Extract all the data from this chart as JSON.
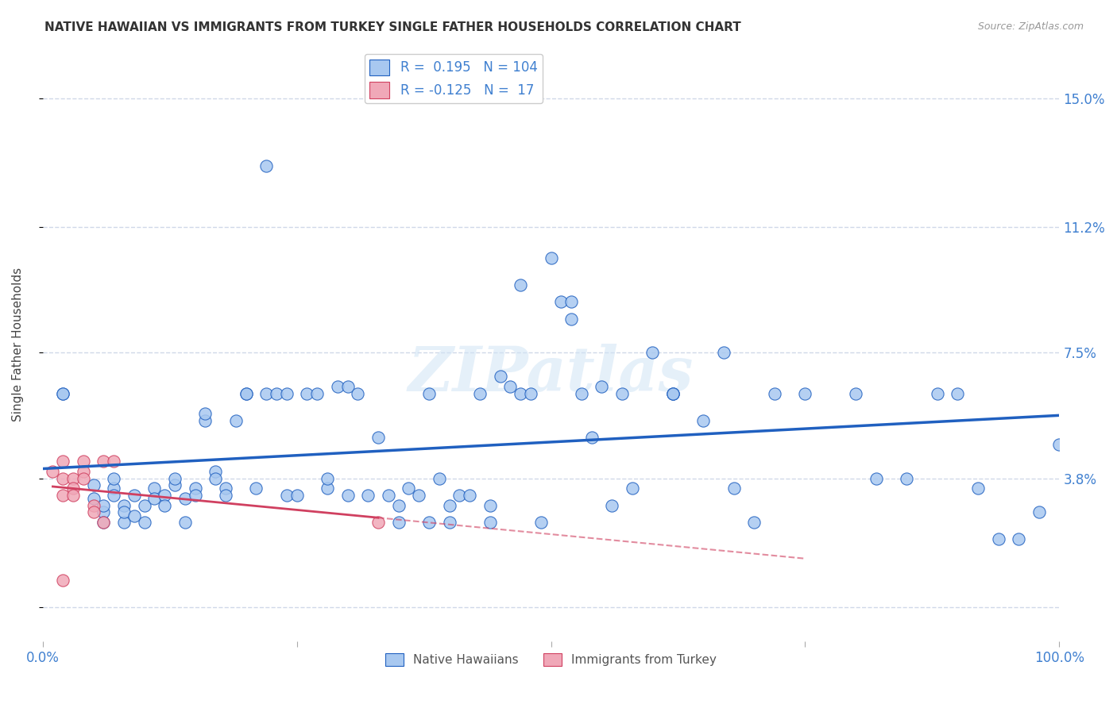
{
  "title": "NATIVE HAWAIIAN VS IMMIGRANTS FROM TURKEY SINGLE FATHER HOUSEHOLDS CORRELATION CHART",
  "source": "Source: ZipAtlas.com",
  "ylabel": "Single Father Households",
  "xlim": [
    0,
    1.0
  ],
  "ylim": [
    -0.01,
    0.165
  ],
  "xticks": [
    0.0,
    0.25,
    0.5,
    0.75,
    1.0
  ],
  "xticklabels": [
    "0.0%",
    "",
    "",
    "",
    "100.0%"
  ],
  "ytick_positions": [
    0.0,
    0.038,
    0.075,
    0.112,
    0.15
  ],
  "ytick_labels": [
    "",
    "3.8%",
    "7.5%",
    "11.2%",
    "15.0%"
  ],
  "blue_R": 0.195,
  "blue_N": 104,
  "pink_R": -0.125,
  "pink_N": 17,
  "blue_color": "#a8c8f0",
  "blue_line_color": "#2060c0",
  "pink_color": "#f0a8b8",
  "pink_line_color": "#d04060",
  "watermark": "ZIPatlas",
  "blue_scatter_x": [
    0.02,
    0.02,
    0.05,
    0.05,
    0.06,
    0.06,
    0.06,
    0.07,
    0.07,
    0.07,
    0.08,
    0.08,
    0.08,
    0.09,
    0.09,
    0.1,
    0.1,
    0.11,
    0.11,
    0.12,
    0.12,
    0.13,
    0.13,
    0.14,
    0.14,
    0.15,
    0.15,
    0.16,
    0.16,
    0.17,
    0.17,
    0.18,
    0.18,
    0.19,
    0.2,
    0.2,
    0.21,
    0.22,
    0.22,
    0.23,
    0.24,
    0.24,
    0.25,
    0.26,
    0.27,
    0.28,
    0.28,
    0.29,
    0.3,
    0.3,
    0.31,
    0.32,
    0.33,
    0.34,
    0.35,
    0.35,
    0.36,
    0.37,
    0.38,
    0.38,
    0.39,
    0.4,
    0.4,
    0.41,
    0.42,
    0.43,
    0.44,
    0.44,
    0.45,
    0.46,
    0.47,
    0.47,
    0.48,
    0.49,
    0.5,
    0.51,
    0.52,
    0.52,
    0.53,
    0.54,
    0.55,
    0.56,
    0.6,
    0.62,
    0.65,
    0.68,
    0.7,
    0.72,
    0.75,
    0.8,
    0.82,
    0.85,
    0.88,
    0.9,
    0.92,
    0.94,
    0.96,
    0.98,
    1.0,
    0.62,
    0.57,
    0.58,
    0.62,
    0.67
  ],
  "blue_scatter_y": [
    0.063,
    0.063,
    0.032,
    0.036,
    0.028,
    0.025,
    0.03,
    0.035,
    0.033,
    0.038,
    0.025,
    0.03,
    0.028,
    0.033,
    0.027,
    0.025,
    0.03,
    0.035,
    0.032,
    0.033,
    0.03,
    0.036,
    0.038,
    0.032,
    0.025,
    0.035,
    0.033,
    0.055,
    0.057,
    0.04,
    0.038,
    0.035,
    0.033,
    0.055,
    0.063,
    0.063,
    0.035,
    0.063,
    0.13,
    0.063,
    0.063,
    0.033,
    0.033,
    0.063,
    0.063,
    0.035,
    0.038,
    0.065,
    0.065,
    0.033,
    0.063,
    0.033,
    0.05,
    0.033,
    0.025,
    0.03,
    0.035,
    0.033,
    0.025,
    0.063,
    0.038,
    0.025,
    0.03,
    0.033,
    0.033,
    0.063,
    0.025,
    0.03,
    0.068,
    0.065,
    0.063,
    0.095,
    0.063,
    0.025,
    0.103,
    0.09,
    0.085,
    0.09,
    0.063,
    0.05,
    0.065,
    0.03,
    0.075,
    0.063,
    0.055,
    0.035,
    0.025,
    0.063,
    0.063,
    0.063,
    0.038,
    0.038,
    0.063,
    0.063,
    0.035,
    0.02,
    0.02,
    0.028,
    0.048,
    0.063,
    0.063,
    0.035,
    0.063,
    0.075
  ],
  "pink_scatter_x": [
    0.01,
    0.02,
    0.02,
    0.02,
    0.02,
    0.03,
    0.03,
    0.03,
    0.04,
    0.04,
    0.04,
    0.05,
    0.05,
    0.06,
    0.06,
    0.07,
    0.33
  ],
  "pink_scatter_y": [
    0.04,
    0.043,
    0.038,
    0.033,
    0.008,
    0.038,
    0.035,
    0.033,
    0.043,
    0.04,
    0.038,
    0.03,
    0.028,
    0.025,
    0.043,
    0.043,
    0.025
  ],
  "grid_color": "#d0d8e8",
  "title_fontsize": 11,
  "axis_tick_color": "#4080d0"
}
